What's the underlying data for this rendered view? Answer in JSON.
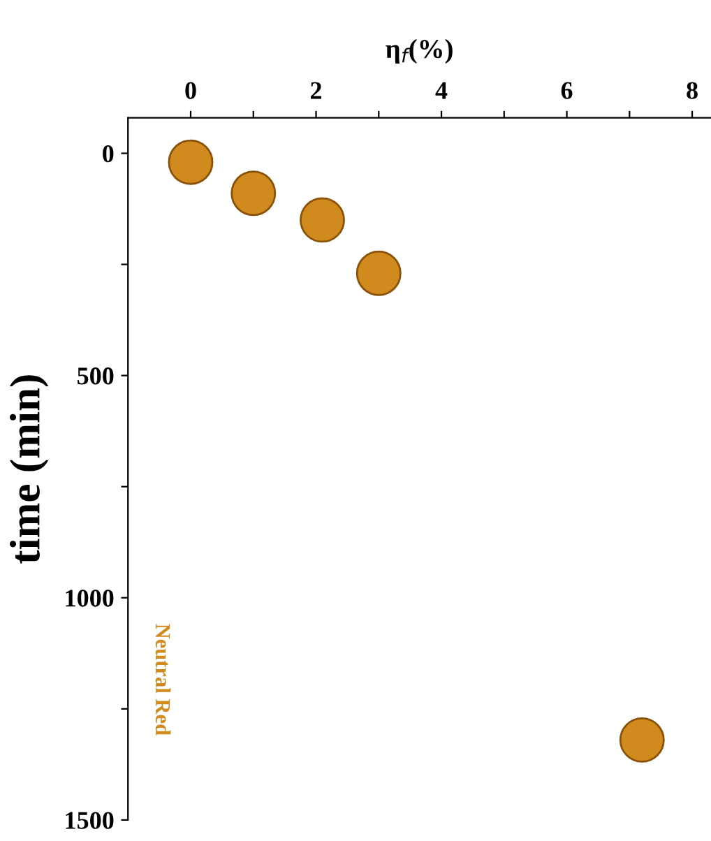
{
  "chart_data": {
    "type": "scatter",
    "xlabel": "η$_{f}$(%)",
    "ylabel": "time (min)",
    "x": [
      0,
      1,
      2.1,
      3,
      7.2
    ],
    "series": [
      {
        "color": "#d08a1e",
        "values": [
          20,
          90,
          150,
          270,
          1320
        ]
      }
    ],
    "xlim": [
      -1,
      8.3
    ],
    "xticks": [
      0,
      {
        "value": 1,
        "label": null
      },
      2,
      {
        "value": 3,
        "label": null
      },
      4,
      {
        "value": 5,
        "label": null
      },
      6,
      {
        "value": 7,
        "label": null
      },
      8
    ],
    "ylim": [
      1500,
      -80
    ],
    "yticks": [
      0,
      {
        "value": 250,
        "label": null
      },
      500,
      {
        "value": 750,
        "label": null
      },
      1000,
      {
        "value": 1250,
        "label": null
      },
      1500
    ],
    "annotations": [
      "Neutral Red"
    ],
    "marker": "circle",
    "grid": false,
    "legend": false
  }
}
